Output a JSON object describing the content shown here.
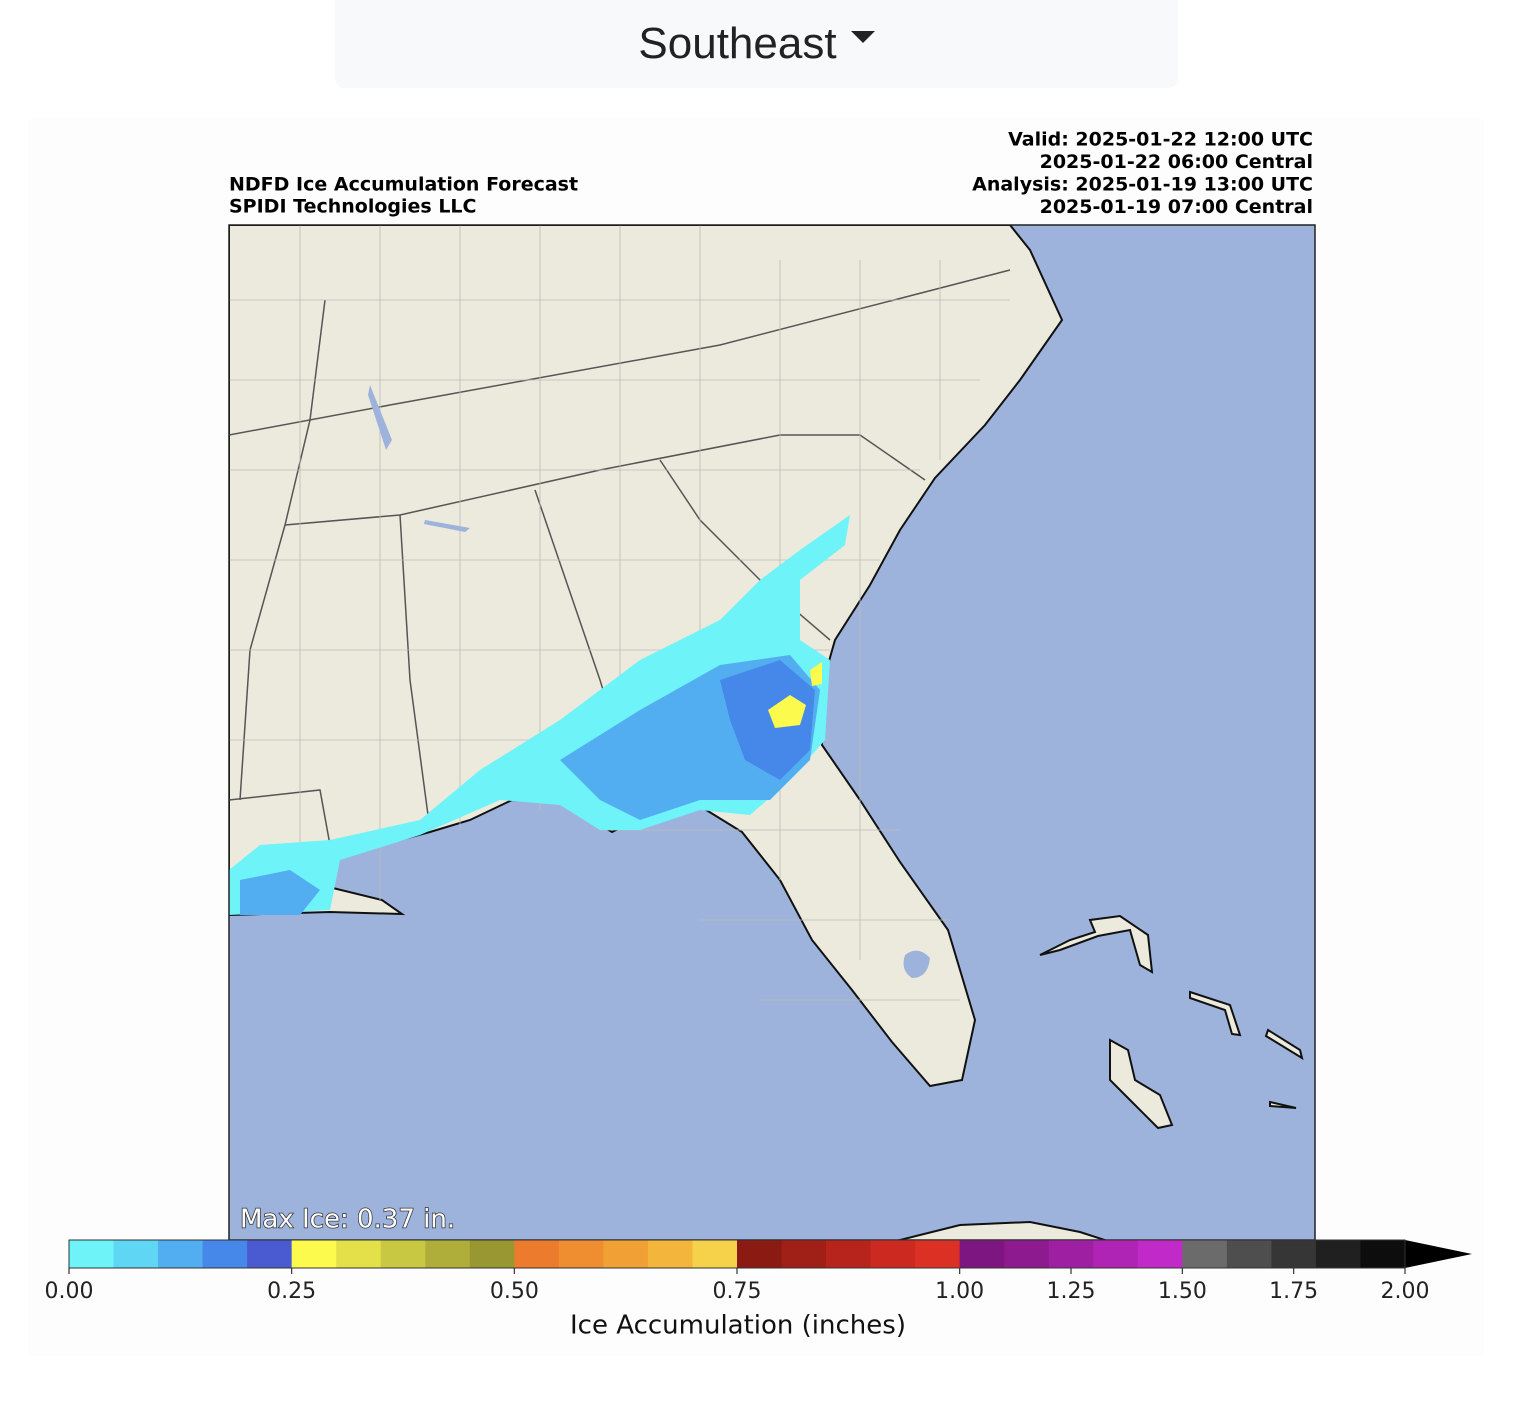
{
  "dropdown": {
    "label": "Southeast"
  },
  "chart_data": {
    "type": "map",
    "title_lines": [
      "NDFD Ice Accumulation Forecast",
      "SPIDI Technologies LLC"
    ],
    "time_lines": [
      "Valid: 2025-01-22 12:00 UTC",
      "2025-01-22 06:00 Central",
      "Analysis: 2025-01-19 13:00 UTC",
      "2025-01-19 07:00 Central"
    ],
    "annotation": "Max Ice: 0.37 in.",
    "colorbar": {
      "label": "Ice Accumulation (inches)",
      "boundaries": [
        0,
        0.05,
        0.1,
        0.15,
        0.2,
        0.25,
        0.3,
        0.35,
        0.4,
        0.45,
        0.5,
        0.55,
        0.6,
        0.65,
        0.7,
        0.75,
        0.8,
        0.85,
        0.9,
        0.95,
        1.0,
        1.1,
        1.2,
        1.3,
        1.4,
        1.5,
        1.6,
        1.7,
        1.8,
        1.9,
        2.0
      ],
      "colors": [
        "#6ef3f8",
        "#5ed6f4",
        "#52aef0",
        "#4688ea",
        "#4a5ad0",
        "#fdfa4e",
        "#e3e04a",
        "#c9c842",
        "#b0ae3a",
        "#989731",
        "#ec7b2d",
        "#ef8e30",
        "#f1a035",
        "#f3b53b",
        "#f6d24a",
        "#8a1a12",
        "#a01f16",
        "#b7241b",
        "#cc2a20",
        "#dc3024",
        "#7d1680",
        "#8e1a8f",
        "#9f1fa3",
        "#af23b5",
        "#c12ac9",
        "#6b6b6b",
        "#4e4e4e",
        "#363636",
        "#202020",
        "#0d0d0d"
      ],
      "extend_color": "#000000",
      "ticks": [
        {
          "value": 0,
          "label": "0.00"
        },
        {
          "value": 0.25,
          "label": "0.25"
        },
        {
          "value": 0.5,
          "label": "0.50"
        },
        {
          "value": 0.75,
          "label": "0.75"
        },
        {
          "value": 1.0,
          "label": "1.00"
        },
        {
          "value": 1.25,
          "label": "1.25"
        },
        {
          "value": 1.5,
          "label": "1.50"
        },
        {
          "value": 1.75,
          "label": "1.75"
        },
        {
          "value": 2.0,
          "label": "2.00"
        }
      ]
    }
  }
}
